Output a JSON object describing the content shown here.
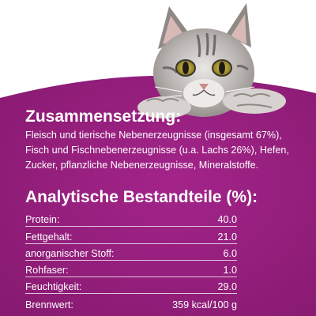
{
  "composition": {
    "title": "Zusammensetzung:",
    "text": "Fleisch und tierische Nebenerzeugnisse (insgesamt 67%), Fisch und Fischnebenerzeugnisse (u.a. Lachs 26%), Hefen, Zucker, pflanzliche Nebenerzeugnisse, Mineralstoffe."
  },
  "analysis": {
    "title": "Analytische Bestandteile (%):",
    "rows": [
      {
        "label": "Protein:",
        "value": "40.0"
      },
      {
        "label": "Fettgehalt:",
        "value": "21.0"
      },
      {
        "label": "anorganischer Stoff:",
        "value": "6.0"
      },
      {
        "label": "Rohfaser:",
        "value": "1.0"
      },
      {
        "label": "Feuchtigkeit:",
        "value": "29.0"
      },
      {
        "label": "Brennwert:",
        "value": "359 kcal/100 g"
      }
    ]
  },
  "colors": {
    "panel": "#9b1f7f",
    "panel_dark": "#7e1666",
    "text": "#ffffff"
  },
  "image": {
    "subject": "cat-illustration"
  }
}
